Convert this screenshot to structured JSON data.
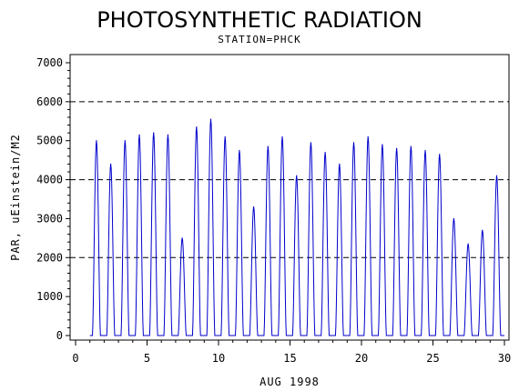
{
  "chart_data": {
    "type": "line",
    "title": "PHOTOSYNTHETIC RADIATION",
    "subtitle": "STATION=PHCK",
    "xlabel": "AUG 1998",
    "ylabel": "PAR, uEinstein/M2",
    "xlim": [
      0,
      30
    ],
    "ylim": [
      0,
      7000
    ],
    "xticks": [
      0,
      5,
      10,
      15,
      20,
      25,
      30
    ],
    "yticks": [
      0,
      1000,
      2000,
      3000,
      4000,
      5000,
      6000,
      7000
    ],
    "reference_lines": [
      2000,
      4000,
      6000
    ],
    "grid": false,
    "line_color": "#0000cc",
    "series": [
      {
        "name": "",
        "daily_peaks": [
          {
            "day": 1,
            "peak": 5000
          },
          {
            "day": 2,
            "peak": 4400
          },
          {
            "day": 3,
            "peak": 5000
          },
          {
            "day": 4,
            "peak": 5150
          },
          {
            "day": 5,
            "peak": 5200
          },
          {
            "day": 6,
            "peak": 5150
          },
          {
            "day": 7,
            "peak": 2500
          },
          {
            "day": 8,
            "peak": 5350
          },
          {
            "day": 9,
            "peak": 5550
          },
          {
            "day": 10,
            "peak": 5100
          },
          {
            "day": 11,
            "peak": 4750
          },
          {
            "day": 12,
            "peak": 3300
          },
          {
            "day": 13,
            "peak": 4850
          },
          {
            "day": 14,
            "peak": 5100
          },
          {
            "day": 15,
            "peak": 4100
          },
          {
            "day": 16,
            "peak": 4950
          },
          {
            "day": 17,
            "peak": 4700
          },
          {
            "day": 18,
            "peak": 4400
          },
          {
            "day": 19,
            "peak": 4950
          },
          {
            "day": 20,
            "peak": 5100
          },
          {
            "day": 21,
            "peak": 4900
          },
          {
            "day": 22,
            "peak": 4800
          },
          {
            "day": 23,
            "peak": 4850
          },
          {
            "day": 24,
            "peak": 4750
          },
          {
            "day": 25,
            "peak": 4650
          },
          {
            "day": 26,
            "peak": 3000
          },
          {
            "day": 27,
            "peak": 2350
          },
          {
            "day": 28,
            "peak": 2700
          },
          {
            "day": 29,
            "peak": 4100
          }
        ]
      }
    ]
  }
}
